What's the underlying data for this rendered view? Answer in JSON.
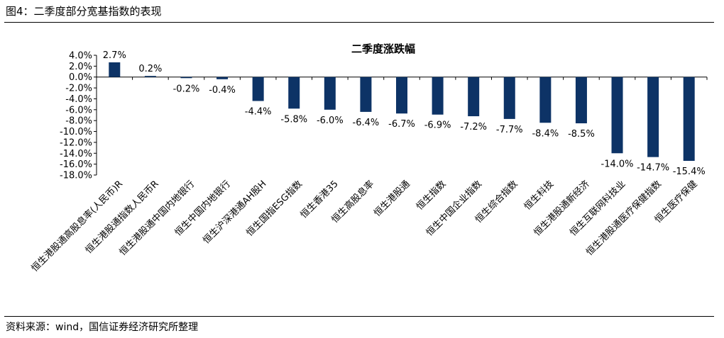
{
  "figure_title": "图4：二季度部分宽基指数的表现",
  "source_note": "资料来源：wind，国信证券经济研究所整理",
  "colors": {
    "bar": "#0d3366",
    "axis": "#000000"
  },
  "chart_data": {
    "type": "bar",
    "title": "二季度涨跌幅",
    "xlabel": "",
    "ylabel": "",
    "ylim": [
      -18,
      4
    ],
    "yticks": [
      "4.0%",
      "2.0%",
      "0.0%",
      "-2.0%",
      "-4.0%",
      "-6.0%",
      "-8.0%",
      "-10.0%",
      "-12.0%",
      "-14.0%",
      "-16.0%",
      "-18.0%"
    ],
    "grid": false,
    "legend": "none",
    "categories": [
      "恒生港股通高股息率(人民币)R",
      "恒生港股通指数人民币R",
      "恒生港股通中国内地银行",
      "恒生中国内地银行",
      "恒生沪深港通AH股H",
      "恒生国指ESG指数",
      "恒生香港35",
      "恒生高股息率",
      "恒生港股通",
      "恒生指数",
      "恒生中国企业指数",
      "恒生综合指数",
      "恒生科技",
      "恒生港股通新经济",
      "恒生互联网科技业",
      "恒生港股通医疗保健指数",
      "恒生医疗保健"
    ],
    "values": [
      2.7,
      0.2,
      -0.2,
      -0.4,
      -4.4,
      -5.8,
      -6.0,
      -6.4,
      -6.7,
      -6.9,
      -7.2,
      -7.7,
      -8.4,
      -8.5,
      -14.0,
      -14.7,
      -15.4
    ],
    "data_labels": [
      "2.7%",
      "0.2%",
      "-0.2%",
      "-0.4%",
      "-4.4%",
      "-5.8%",
      "-6.0%",
      "-6.4%",
      "-6.7%",
      "-6.9%",
      "-7.2%",
      "-7.7%",
      "-8.4%",
      "-8.5%",
      "-14.0%",
      "-14.7%",
      "-15.4%"
    ]
  }
}
